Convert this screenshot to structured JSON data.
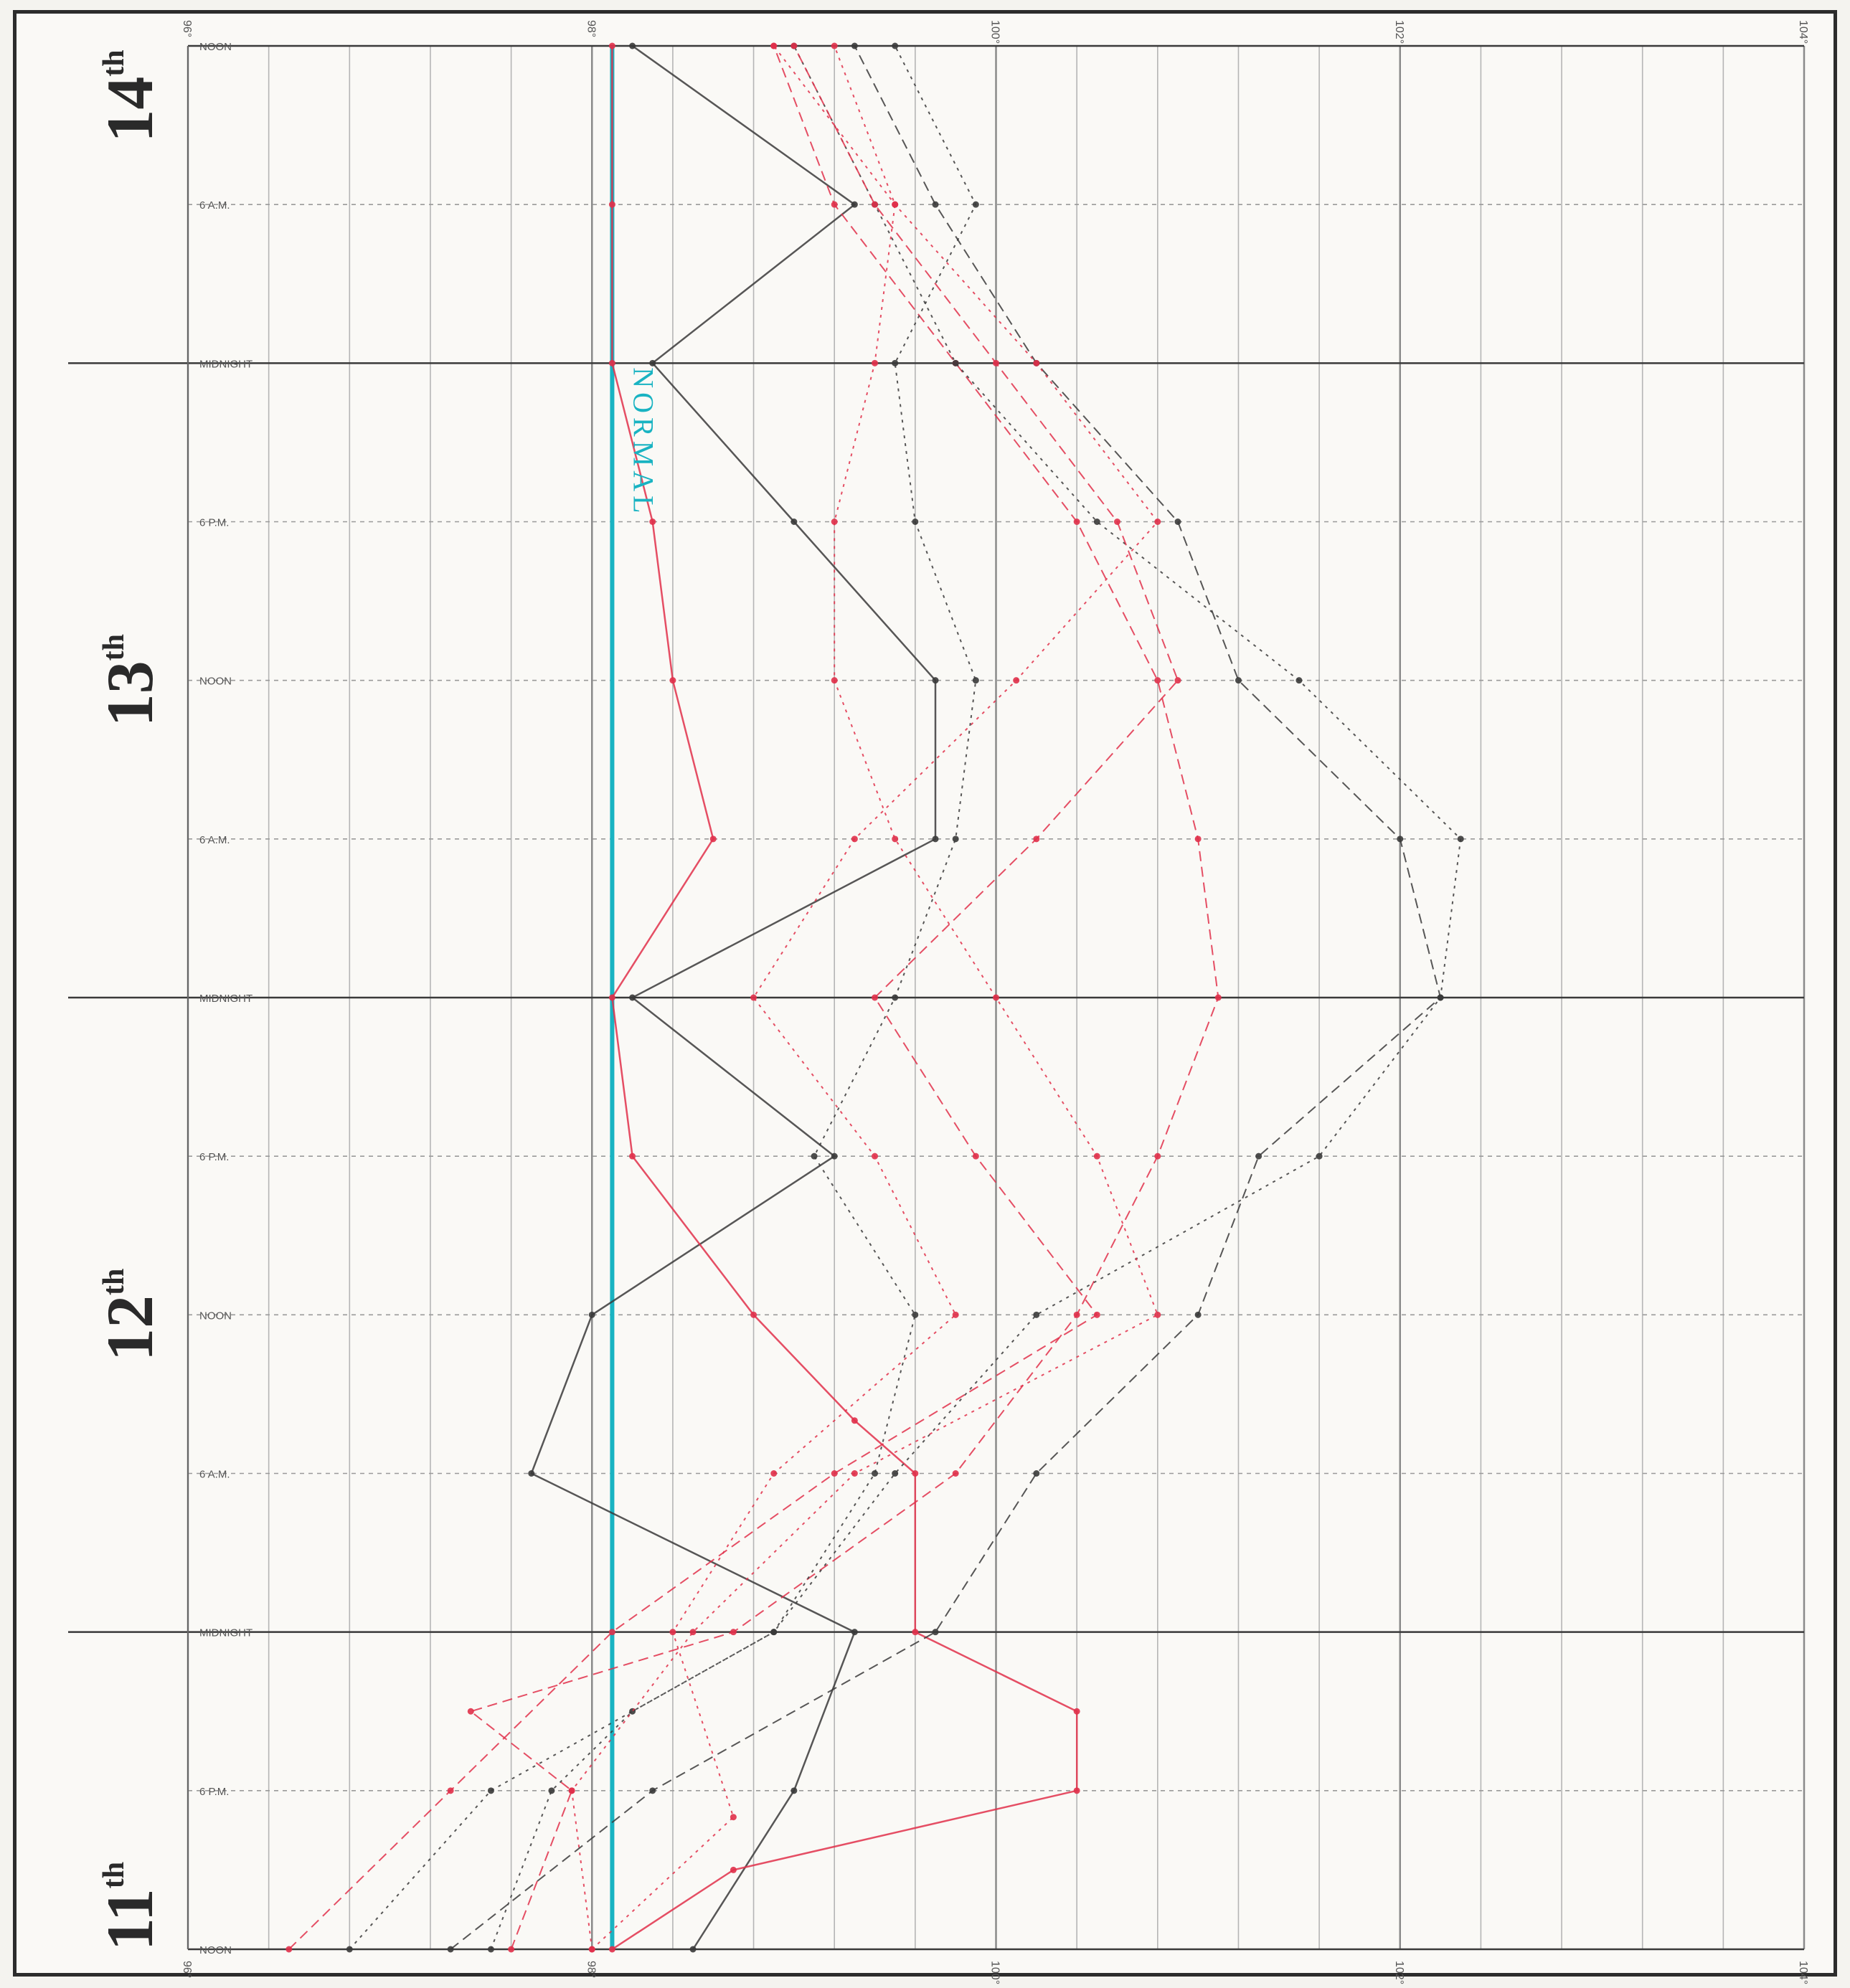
{
  "chart_data": {
    "type": "line",
    "orientation": "rotated",
    "day_labels": [
      {
        "day": "11",
        "suffix": "th",
        "at_hour": 0
      },
      {
        "day": "12",
        "suffix": "th",
        "at_hour": 24
      },
      {
        "day": "13",
        "suffix": "th",
        "at_hour": 48
      },
      {
        "day": "14",
        "suffix": "th",
        "at_hour": 72
      }
    ],
    "time_labels": [
      "NOON",
      "6 P.M.",
      "MIDNIGHT",
      "6 A.M.",
      "NOON",
      "6 P.M.",
      "MIDNIGHT",
      "6 A.M.",
      "NOON",
      "6 P.M.",
      "MIDNIGHT",
      "6 A.M.",
      "NOON"
    ],
    "time_range_hours": [
      0,
      72
    ],
    "temp_range": [
      96,
      104
    ],
    "temp_ticks": [
      {
        "value": 96,
        "label": "96°"
      },
      {
        "value": 98,
        "label": "98°"
      },
      {
        "value": 100,
        "label": "100°"
      },
      {
        "value": 102,
        "label": "102°"
      },
      {
        "value": 104,
        "label": "104°"
      }
    ],
    "grid": true,
    "normal_value": 98.1,
    "normal_label": "NORMAL",
    "colors": {
      "normal": "#19b3c2",
      "red": "#e0304a",
      "black": "#3a3a3a",
      "grid": "#9a9a9a"
    },
    "series": [
      {
        "color": "black",
        "style": "solid",
        "values": [
          [
            0,
            98.5
          ],
          [
            6,
            99
          ],
          [
            12,
            99.3
          ],
          [
            18,
            97.7
          ],
          [
            24,
            98
          ],
          [
            30,
            99.2
          ],
          [
            36,
            98.2
          ],
          [
            42,
            99.7
          ],
          [
            48,
            99.7
          ],
          [
            54,
            99
          ],
          [
            60,
            98.3
          ],
          [
            66,
            99.3
          ],
          [
            72,
            98.2
          ]
        ]
      },
      {
        "color": "red",
        "style": "solid",
        "values": [
          [
            0,
            98.1
          ],
          [
            3,
            98.7
          ],
          [
            6,
            100.4
          ],
          [
            9,
            100.4
          ],
          [
            12,
            99.6
          ],
          [
            18,
            99.6
          ],
          [
            20,
            99.3
          ],
          [
            24,
            98.8
          ],
          [
            30,
            98.2
          ],
          [
            36,
            98.1
          ],
          [
            42,
            98.6
          ],
          [
            48,
            98.4
          ],
          [
            54,
            98.3
          ],
          [
            60,
            98.1
          ],
          [
            66,
            98.1
          ],
          [
            72,
            98.1
          ]
        ]
      },
      {
        "color": "red",
        "style": "dashed",
        "values": [
          [
            0,
            97.6
          ],
          [
            6,
            97.9
          ],
          [
            9,
            97.4
          ],
          [
            12,
            98.7
          ],
          [
            18,
            99.8
          ],
          [
            24,
            100.4
          ],
          [
            30,
            100.8
          ],
          [
            36,
            101.1
          ],
          [
            42,
            101
          ],
          [
            48,
            100.8
          ],
          [
            54,
            100.4
          ],
          [
            60,
            99.8
          ],
          [
            66,
            99.2
          ],
          [
            72,
            98.9
          ]
        ]
      },
      {
        "color": "black",
        "style": "dotted",
        "values": [
          [
            0,
            97.5
          ],
          [
            6,
            97.8
          ],
          [
            9,
            98.2
          ],
          [
            12,
            98.9
          ],
          [
            18,
            99.5
          ],
          [
            24,
            100.2
          ],
          [
            30,
            101.6
          ],
          [
            36,
            102.2
          ],
          [
            42,
            102.3
          ],
          [
            48,
            101.5
          ],
          [
            54,
            100.5
          ],
          [
            60,
            99.8
          ],
          [
            66,
            99.4
          ],
          [
            72,
            99
          ]
        ]
      },
      {
        "color": "red",
        "style": "dotted",
        "values": [
          [
            0,
            98
          ],
          [
            6,
            97.9
          ],
          [
            12,
            98.5
          ],
          [
            18,
            99.3
          ],
          [
            24,
            100.8
          ],
          [
            30,
            100.5
          ],
          [
            36,
            100
          ],
          [
            42,
            99.5
          ],
          [
            48,
            99.2
          ],
          [
            54,
            99.2
          ],
          [
            60,
            99.4
          ],
          [
            66,
            99.5
          ],
          [
            72,
            99.2
          ]
        ]
      },
      {
        "color": "black",
        "style": "dashed",
        "values": [
          [
            0,
            97.3
          ],
          [
            6,
            98.3
          ],
          [
            12,
            99.7
          ],
          [
            18,
            100.2
          ],
          [
            24,
            101
          ],
          [
            30,
            101.3
          ],
          [
            36,
            102.2
          ],
          [
            42,
            102
          ],
          [
            48,
            101.2
          ],
          [
            54,
            100.9
          ],
          [
            60,
            100.2
          ],
          [
            66,
            99.7
          ],
          [
            72,
            99.3
          ]
        ]
      },
      {
        "color": "red",
        "style": "dashed",
        "values": [
          [
            0,
            96.5
          ],
          [
            6,
            97.3
          ],
          [
            12,
            98.1
          ],
          [
            18,
            99.2
          ],
          [
            24,
            100.5
          ],
          [
            30,
            99.9
          ],
          [
            36,
            99.4
          ],
          [
            42,
            100.2
          ],
          [
            48,
            100.9
          ],
          [
            54,
            100.6
          ],
          [
            60,
            100
          ],
          [
            66,
            99.4
          ],
          [
            72,
            99
          ]
        ]
      },
      {
        "color": "red",
        "style": "dotted",
        "values": [
          [
            0,
            98
          ],
          [
            5,
            98.7
          ],
          [
            12,
            98.4
          ],
          [
            18,
            98.9
          ],
          [
            24,
            99.8
          ],
          [
            30,
            99.4
          ],
          [
            36,
            98.8
          ],
          [
            42,
            99.3
          ],
          [
            48,
            100.1
          ],
          [
            54,
            100.8
          ],
          [
            60,
            100.2
          ],
          [
            66,
            99.5
          ],
          [
            72,
            98.9
          ]
        ]
      },
      {
        "color": "black",
        "style": "dotted",
        "values": [
          [
            0,
            96.8
          ],
          [
            6,
            97.5
          ],
          [
            12,
            98.9
          ],
          [
            18,
            99.4
          ],
          [
            24,
            99.6
          ],
          [
            30,
            99.1
          ],
          [
            36,
            99.5
          ],
          [
            42,
            99.8
          ],
          [
            48,
            99.9
          ],
          [
            54,
            99.6
          ],
          [
            60,
            99.5
          ],
          [
            66,
            99.9
          ],
          [
            72,
            99.5
          ]
        ]
      }
    ]
  }
}
